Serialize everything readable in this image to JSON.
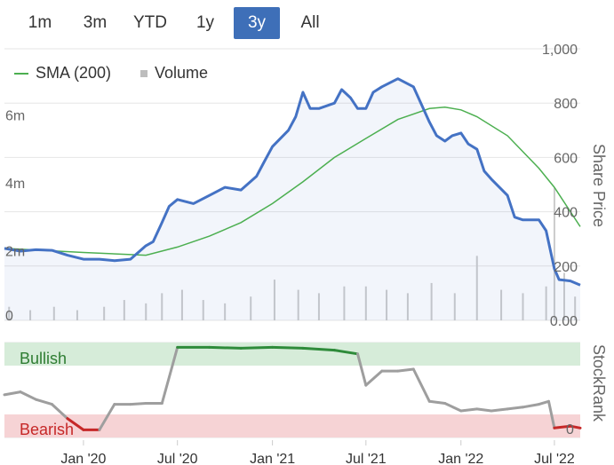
{
  "range_buttons": [
    "1m",
    "3m",
    "YTD",
    "1y",
    "3y",
    "All"
  ],
  "active_range": "3y",
  "legend": {
    "sma_label": "SMA (200)",
    "volume_label": "Volume"
  },
  "colors": {
    "price": "#4472c4",
    "sma": "#4caf50",
    "volume": "#cccccc",
    "bullish_band": "#d6ecd9",
    "bearish_band": "#f6d3d5",
    "rank_neutral": "#9e9e9e",
    "rank_bullish": "#2e8b3a",
    "rank_bearish": "#c62828",
    "active_button": "#3e6fb8"
  },
  "chart_data": [
    {
      "type": "line",
      "name": "price-panel",
      "ylabel": "Share Price",
      "ylim": [
        0,
        1000
      ],
      "right_ticks": [
        "1,000",
        "800",
        "600",
        "400",
        "200",
        "0.00"
      ],
      "left_ticks": [
        "6m",
        "4m",
        "2m",
        "0"
      ],
      "x_ticks": [
        "Jan '20",
        "Jul '20",
        "Jan '21",
        "Jul '21",
        "Jan '22",
        "Jul '22"
      ],
      "x_range": [
        "2019-08-01",
        "2022-08-20"
      ],
      "series": [
        {
          "name": "Price",
          "points": [
            [
              "2019-08-01",
              265
            ],
            [
              "2019-09-01",
              255
            ],
            [
              "2019-10-01",
              260
            ],
            [
              "2019-11-01",
              258
            ],
            [
              "2019-12-01",
              240
            ],
            [
              "2020-01-01",
              225
            ],
            [
              "2020-02-01",
              225
            ],
            [
              "2020-03-01",
              220
            ],
            [
              "2020-04-01",
              225
            ],
            [
              "2020-05-01",
              275
            ],
            [
              "2020-05-15",
              290
            ],
            [
              "2020-06-01",
              360
            ],
            [
              "2020-06-15",
              420
            ],
            [
              "2020-07-01",
              445
            ],
            [
              "2020-08-01",
              430
            ],
            [
              "2020-09-01",
              460
            ],
            [
              "2020-10-01",
              490
            ],
            [
              "2020-11-01",
              480
            ],
            [
              "2020-12-01",
              530
            ],
            [
              "2020-12-15",
              580
            ],
            [
              "2021-01-01",
              640
            ],
            [
              "2021-02-01",
              700
            ],
            [
              "2021-02-15",
              750
            ],
            [
              "2021-03-01",
              840
            ],
            [
              "2021-03-15",
              780
            ],
            [
              "2021-04-01",
              780
            ],
            [
              "2021-05-01",
              800
            ],
            [
              "2021-05-15",
              850
            ],
            [
              "2021-06-01",
              820
            ],
            [
              "2021-06-15",
              780
            ],
            [
              "2021-07-01",
              780
            ],
            [
              "2021-07-15",
              840
            ],
            [
              "2021-08-01",
              860
            ],
            [
              "2021-09-01",
              890
            ],
            [
              "2021-10-01",
              860
            ],
            [
              "2021-11-01",
              730
            ],
            [
              "2021-11-15",
              680
            ],
            [
              "2021-12-01",
              660
            ],
            [
              "2021-12-15",
              680
            ],
            [
              "2022-01-01",
              690
            ],
            [
              "2022-01-15",
              650
            ],
            [
              "2022-02-01",
              630
            ],
            [
              "2022-02-15",
              550
            ],
            [
              "2022-03-01",
              520
            ],
            [
              "2022-04-01",
              460
            ],
            [
              "2022-04-15",
              380
            ],
            [
              "2022-05-01",
              370
            ],
            [
              "2022-06-01",
              370
            ],
            [
              "2022-06-15",
              330
            ],
            [
              "2022-07-01",
              190
            ],
            [
              "2022-07-10",
              150
            ],
            [
              "2022-08-01",
              145
            ],
            [
              "2022-08-20",
              130
            ]
          ]
        },
        {
          "name": "SMA (200)",
          "points": [
            [
              "2019-08-01",
              265
            ],
            [
              "2020-01-01",
              250
            ],
            [
              "2020-05-01",
              240
            ],
            [
              "2020-07-01",
              270
            ],
            [
              "2020-09-01",
              310
            ],
            [
              "2020-11-01",
              360
            ],
            [
              "2021-01-01",
              430
            ],
            [
              "2021-03-01",
              510
            ],
            [
              "2021-05-01",
              600
            ],
            [
              "2021-07-01",
              670
            ],
            [
              "2021-09-01",
              740
            ],
            [
              "2021-11-01",
              780
            ],
            [
              "2021-12-01",
              785
            ],
            [
              "2022-01-01",
              775
            ],
            [
              "2022-02-01",
              750
            ],
            [
              "2022-04-01",
              680
            ],
            [
              "2022-06-01",
              560
            ],
            [
              "2022-07-01",
              490
            ],
            [
              "2022-08-01",
              400
            ],
            [
              "2022-08-20",
              345
            ]
          ]
        },
        {
          "name": "Volume",
          "points": [
            [
              "2019-08-10",
              0.4
            ],
            [
              "2019-09-20",
              0.3
            ],
            [
              "2019-11-05",
              0.4
            ],
            [
              "2019-12-20",
              0.3
            ],
            [
              "2020-02-10",
              0.4
            ],
            [
              "2020-03-20",
              0.6
            ],
            [
              "2020-05-01",
              0.5
            ],
            [
              "2020-06-01",
              0.8
            ],
            [
              "2020-07-10",
              0.9
            ],
            [
              "2020-08-20",
              0.6
            ],
            [
              "2020-10-01",
              0.5
            ],
            [
              "2020-11-20",
              0.7
            ],
            [
              "2021-01-05",
              1.2
            ],
            [
              "2021-02-20",
              0.9
            ],
            [
              "2021-04-01",
              0.8
            ],
            [
              "2021-05-20",
              1.0
            ],
            [
              "2021-07-01",
              1.0
            ],
            [
              "2021-08-10",
              0.9
            ],
            [
              "2021-09-20",
              0.8
            ],
            [
              "2021-11-05",
              1.1
            ],
            [
              "2021-12-20",
              0.8
            ],
            [
              "2022-02-01",
              1.9
            ],
            [
              "2022-03-20",
              0.9
            ],
            [
              "2022-05-01",
              0.8
            ],
            [
              "2022-06-15",
              1.0
            ],
            [
              "2022-07-01",
              3.9
            ],
            [
              "2022-07-20",
              1.4
            ],
            [
              "2022-08-10",
              0.7
            ]
          ]
        }
      ]
    },
    {
      "type": "line",
      "name": "stockrank-panel",
      "ylabel": "StockRank",
      "ylim": [
        0,
        100
      ],
      "right_ticks": [
        "0"
      ],
      "bands": [
        "Bullish",
        "Bearish"
      ],
      "series": [
        {
          "name": "StockRank",
          "points": [
            [
              "2019-08-01",
              45
            ],
            [
              "2019-09-01",
              48
            ],
            [
              "2019-10-01",
              40
            ],
            [
              "2019-11-01",
              35
            ],
            [
              "2019-12-01",
              20
            ],
            [
              "2020-01-01",
              8
            ],
            [
              "2020-02-01",
              8
            ],
            [
              "2020-03-01",
              35
            ],
            [
              "2020-04-01",
              35
            ],
            [
              "2020-05-01",
              36
            ],
            [
              "2020-06-01",
              36
            ],
            [
              "2020-07-01",
              95
            ],
            [
              "2020-09-01",
              95
            ],
            [
              "2020-11-01",
              94
            ],
            [
              "2021-01-01",
              95
            ],
            [
              "2021-03-01",
              94
            ],
            [
              "2021-05-01",
              92
            ],
            [
              "2021-06-15",
              88
            ],
            [
              "2021-07-01",
              55
            ],
            [
              "2021-08-01",
              70
            ],
            [
              "2021-09-01",
              70
            ],
            [
              "2021-10-01",
              72
            ],
            [
              "2021-11-01",
              38
            ],
            [
              "2021-12-01",
              36
            ],
            [
              "2022-01-01",
              28
            ],
            [
              "2022-02-01",
              30
            ],
            [
              "2022-03-01",
              28
            ],
            [
              "2022-04-01",
              30
            ],
            [
              "2022-05-01",
              32
            ],
            [
              "2022-06-01",
              35
            ],
            [
              "2022-06-20",
              38
            ],
            [
              "2022-07-01",
              10
            ],
            [
              "2022-08-01",
              12
            ],
            [
              "2022-08-20",
              10
            ]
          ]
        }
      ]
    }
  ]
}
